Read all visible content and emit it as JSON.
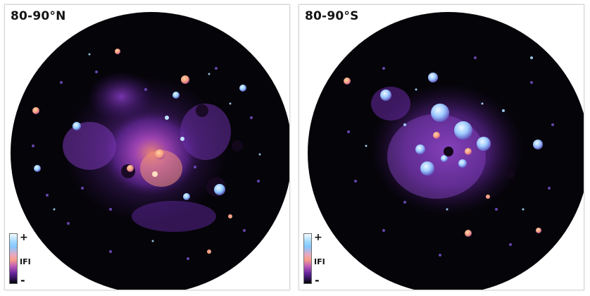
{
  "panels": [
    {
      "title": "80-90°N",
      "scale": {
        "top": "+",
        "mid": "IFI",
        "bottom": "-"
      }
    },
    {
      "title": "80-90°S",
      "scale": {
        "top": "+",
        "mid": "IFI",
        "bottom": "-"
      }
    }
  ],
  "colors": {
    "background": "#ffffff",
    "disk": "#050408",
    "low": "#2a0f49",
    "mid_low": "#7a3fbe",
    "mid": "#f6a28b",
    "high": "#8fd0ff",
    "highest": "#f4fbff"
  }
}
